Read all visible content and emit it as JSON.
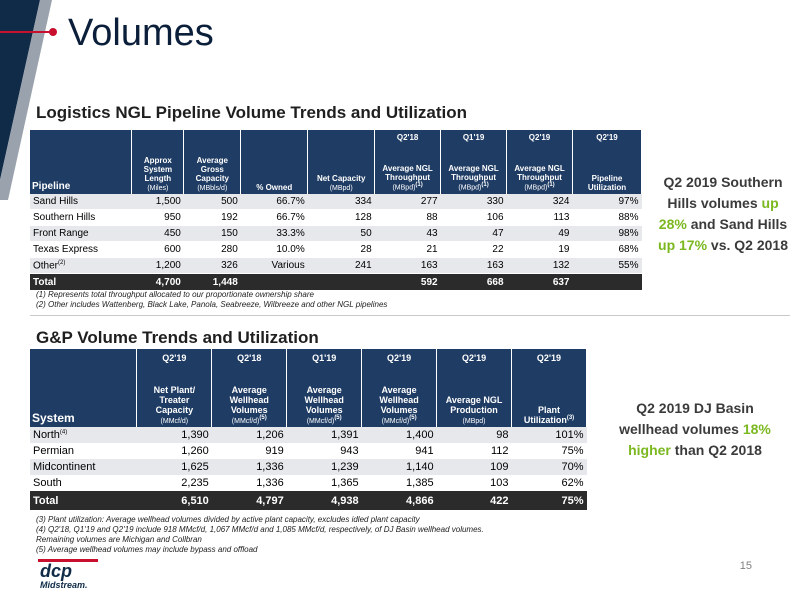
{
  "slide": {
    "title": "Volumes",
    "page_number": "15"
  },
  "logistics": {
    "heading": "Logistics NGL Pipeline Volume Trends and Utilization",
    "period_headers": [
      "Q2'18",
      "Q1'19",
      "Q2'19",
      "Q2'19"
    ],
    "col_pipeline": "Pipeline",
    "col_length": "Approx System Length",
    "col_length_unit": "(Miles)",
    "col_capacity": "Average Gross Capacity",
    "col_capacity_unit": "(MBbls/d)",
    "col_owned": "% Owned",
    "col_net": "Net Capacity",
    "col_net_unit": "(MBpd)",
    "col_avg_throughput": "Average NGL Throughput",
    "col_avg_unit": "(MBpd)",
    "col_avg_sup": "(1)",
    "col_util": "Pipeline Utilization",
    "rows": [
      {
        "name": "Sand Hills",
        "sup": "",
        "length": "1,500",
        "capacity": "500",
        "owned": "66.7%",
        "net": "334",
        "q218": "277",
        "q119": "330",
        "q219": "324",
        "util": "97%"
      },
      {
        "name": "Southern Hills",
        "sup": "",
        "length": "950",
        "capacity": "192",
        "owned": "66.7%",
        "net": "128",
        "q218": "88",
        "q119": "106",
        "q219": "113",
        "util": "88%"
      },
      {
        "name": "Front Range",
        "sup": "",
        "length": "450",
        "capacity": "150",
        "owned": "33.3%",
        "net": "50",
        "q218": "43",
        "q119": "47",
        "q219": "49",
        "util": "98%"
      },
      {
        "name": "Texas Express",
        "sup": "",
        "length": "600",
        "capacity": "280",
        "owned": "10.0%",
        "net": "28",
        "q218": "21",
        "q119": "22",
        "q219": "19",
        "util": "68%"
      },
      {
        "name": "Other",
        "sup": "(2)",
        "length": "1,200",
        "capacity": "326",
        "owned": "Various",
        "net": "241",
        "q218": "163",
        "q119": "163",
        "q219": "132",
        "util": "55%"
      }
    ],
    "total": {
      "name": "Total",
      "length": "4,700",
      "capacity": "1,448",
      "q218": "592",
      "q119": "668",
      "q219": "637"
    },
    "notes": [
      "(1) Represents total throughput allocated to our proportionate ownership share",
      "(2) Other includes Wattenberg, Black Lake, Panola, Seabreeze, Wilbreeze and other NGL pipelines"
    ],
    "callout": {
      "line1": "Q2 2019 Southern",
      "line2a": "Hills volumes ",
      "line2b": "up",
      "line3a": "28%",
      "line3b": " and Sand Hills",
      "line4a": "up 17%",
      "line4b": " vs. Q2 2018"
    }
  },
  "gp": {
    "heading": "G&P Volume Trends and Utilization",
    "period_headers": [
      "Q2'19",
      "Q2'18",
      "Q1'19",
      "Q2'19",
      "Q2'19",
      "Q2'19"
    ],
    "col_system": "System",
    "col_net_plant": "Net Plant/ Treater Capacity",
    "col_net_plant_unit": "(MMcf/d)",
    "col_wellhead": "Average Wellhead Volumes",
    "col_wellhead_unit": "(MMcf/d)",
    "col_wellhead_sup": "(5)",
    "col_ngl": "Average NGL Production",
    "col_ngl_unit": "(MBpd)",
    "col_plant_util": "Plant Utilization",
    "col_plant_util_sup": "(3)",
    "rows": [
      {
        "name": "North",
        "sup": "(4)",
        "cap": "1,390",
        "q218": "1,206",
        "q119": "1,391",
        "q219": "1,400",
        "ngl": "98",
        "util": "101%"
      },
      {
        "name": "Permian",
        "sup": "",
        "cap": "1,260",
        "q218": "919",
        "q119": "943",
        "q219": "941",
        "ngl": "112",
        "util": "75%"
      },
      {
        "name": "Midcontinent",
        "sup": "",
        "cap": "1,625",
        "q218": "1,336",
        "q119": "1,239",
        "q219": "1,140",
        "ngl": "109",
        "util": "70%"
      },
      {
        "name": "South",
        "sup": "",
        "cap": "2,235",
        "q218": "1,336",
        "q119": "1,365",
        "q219": "1,385",
        "ngl": "103",
        "util": "62%"
      }
    ],
    "total": {
      "name": "Total",
      "cap": "6,510",
      "q218": "4,797",
      "q119": "4,938",
      "q219": "4,866",
      "ngl": "422",
      "util": "75%"
    },
    "notes": [
      "(3) Plant utilization: Average wellhead volumes divided by active plant capacity, excludes idled plant capacity",
      "(4) Q2'18, Q1'19 and Q2'19 include 918 MMcf/d, 1,067 MMcf/d and 1,085 MMcf/d, respectively, of DJ Basin wellhead volumes.",
      "Remaining volumes are Michigan and Collbran",
      "(5) Average wellhead volumes may include bypass and offload"
    ],
    "callout": {
      "line1": "Q2 2019 DJ Basin",
      "line2a": "wellhead volumes ",
      "line2b": "18%",
      "line3a": "higher",
      "line3b": " than Q2 2018"
    }
  },
  "logo": {
    "brand": "dcp",
    "sub": "Midstream."
  },
  "colors": {
    "header_blue": "#1f3c64",
    "accent_red": "#c8102e",
    "highlight_green": "#7bb81f",
    "total_row": "#2b2b2b"
  }
}
